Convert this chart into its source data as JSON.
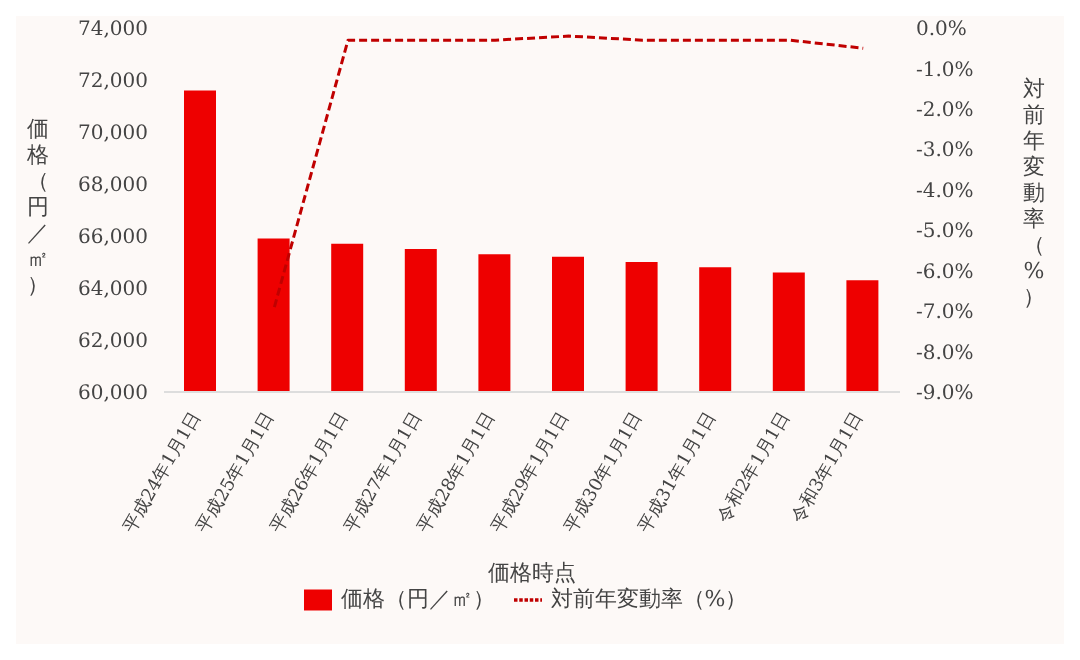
{
  "chart_data": {
    "type": "bar",
    "xlabel": "価格時点",
    "ylabel": "価格（円／㎡）",
    "y2label": "対前年変動率（%）",
    "categories": [
      "平成24年1月1日",
      "平成25年1月1日",
      "平成26年1月1日",
      "平成27年1月1日",
      "平成28年1月1日",
      "平成29年1月1日",
      "平成30年1月1日",
      "平成31年1月1日",
      "令和2年1月1日",
      "令和3年1月1日"
    ],
    "series": [
      {
        "name": "価格（円／㎡）",
        "color": "#ee0000",
        "values": [
          71600,
          65900,
          65700,
          65500,
          65300,
          65200,
          65000,
          64800,
          64600,
          64300
        ]
      },
      {
        "name": "対前年変動率（%）",
        "type": "line",
        "axis": "y2",
        "color": "#c00000",
        "line_style": "dashed",
        "values": [
          null,
          -6.9,
          -0.3,
          -0.3,
          -0.3,
          -0.2,
          -0.3,
          -0.3,
          -0.3,
          -0.5
        ]
      }
    ],
    "ylim": [
      60000,
      74000
    ],
    "yticks": [
      {
        "value": 60000,
        "label": "60,000"
      },
      {
        "value": 62000,
        "label": "62,000"
      },
      {
        "value": 64000,
        "label": "64,000"
      },
      {
        "value": 66000,
        "label": "66,000"
      },
      {
        "value": 68000,
        "label": "68,000"
      },
      {
        "value": 70000,
        "label": "70,000"
      },
      {
        "value": 72000,
        "label": "72,000"
      },
      {
        "value": 74000,
        "label": "74,000"
      }
    ],
    "y2lim": [
      -9,
      0
    ],
    "y2ticks": [
      {
        "value": 0,
        "label": "0.0%"
      },
      {
        "value": -1,
        "label": "-1.0%"
      },
      {
        "value": -2,
        "label": "-2.0%"
      },
      {
        "value": -3,
        "label": "-3.0%"
      },
      {
        "value": -4,
        "label": "-4.0%"
      },
      {
        "value": -5,
        "label": "-5.0%"
      },
      {
        "value": -6,
        "label": "-6.0%"
      },
      {
        "value": -7,
        "label": "-7.0%"
      },
      {
        "value": -8,
        "label": "-8.0%"
      },
      {
        "value": -9,
        "label": "-9.0%"
      }
    ],
    "grid": false,
    "legend": "bottom",
    "marker": "none"
  }
}
